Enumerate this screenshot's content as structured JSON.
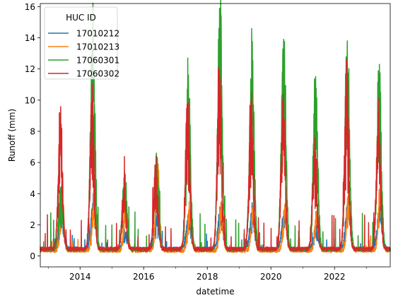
{
  "chart_data": {
    "type": "line",
    "xlabel": "datetime",
    "ylabel": "Runoff (mm)",
    "x_range": [
      "2012-10",
      "2023-10"
    ],
    "ylim": [
      -0.7,
      16.2
    ],
    "x_ticks": [
      {
        "date": "2014-01",
        "label": "2014"
      },
      {
        "date": "2016-01",
        "label": "2016"
      },
      {
        "date": "2018-01",
        "label": "2018"
      },
      {
        "date": "2020-01",
        "label": "2020"
      },
      {
        "date": "2022-01",
        "label": "2022"
      }
    ],
    "y_ticks": [
      {
        "value": 0,
        "label": "0"
      },
      {
        "value": 2,
        "label": "2"
      },
      {
        "value": 4,
        "label": "4"
      },
      {
        "value": 6,
        "label": "6"
      },
      {
        "value": 8,
        "label": "8"
      },
      {
        "value": 10,
        "label": "10"
      },
      {
        "value": 12,
        "label": "12"
      },
      {
        "value": 14,
        "label": "14"
      },
      {
        "value": 16,
        "label": "16"
      }
    ],
    "grid": false,
    "legend": {
      "title": "HUC ID",
      "position": "top-left"
    },
    "series": [
      {
        "name": "17010212",
        "color": "#1f77b4",
        "yearly_peaks": [
          {
            "year": 2013,
            "peak": 2.8
          },
          {
            "year": 2014,
            "peak": 3.6
          },
          {
            "year": 2015,
            "peak": 1.5
          },
          {
            "year": 2016,
            "peak": 2.8
          },
          {
            "year": 2017,
            "peak": 2.7
          },
          {
            "year": 2018,
            "peak": 3.0
          },
          {
            "year": 2019,
            "peak": 3.0
          },
          {
            "year": 2020,
            "peak": 3.0
          },
          {
            "year": 2021,
            "peak": 1.8
          },
          {
            "year": 2022,
            "peak": 3.4
          },
          {
            "year": 2023,
            "peak": 3.2
          }
        ]
      },
      {
        "name": "17010213",
        "color": "#ff7f0e",
        "yearly_peaks": [
          {
            "year": 2013,
            "peak": 3.6
          },
          {
            "year": 2014,
            "peak": 4.0
          },
          {
            "year": 2015,
            "peak": 3.8
          },
          {
            "year": 2016,
            "peak": 5.7
          },
          {
            "year": 2017,
            "peak": 3.0
          },
          {
            "year": 2018,
            "peak": 3.5
          },
          {
            "year": 2019,
            "peak": 3.2
          },
          {
            "year": 2020,
            "peak": 3.3
          },
          {
            "year": 2021,
            "peak": 2.7
          },
          {
            "year": 2022,
            "peak": 3.8
          },
          {
            "year": 2023,
            "peak": 4.7
          }
        ]
      },
      {
        "name": "17060301",
        "color": "#2ca02c",
        "yearly_peaks": [
          {
            "year": 2013,
            "peak": 4.2
          },
          {
            "year": 2014,
            "peak": 14.3
          },
          {
            "year": 2015,
            "peak": 5.4
          },
          {
            "year": 2016,
            "peak": 6.6
          },
          {
            "year": 2017,
            "peak": 11.1
          },
          {
            "year": 2018,
            "peak": 15.5
          },
          {
            "year": 2019,
            "peak": 12.8
          },
          {
            "year": 2020,
            "peak": 13.9
          },
          {
            "year": 2021,
            "peak": 11.3
          },
          {
            "year": 2022,
            "peak": 13.8
          },
          {
            "year": 2023,
            "peak": 11.4
          }
        ]
      },
      {
        "name": "17060302",
        "color": "#d62728",
        "yearly_peaks": [
          {
            "year": 2013,
            "peak": 9.2
          },
          {
            "year": 2014,
            "peak": 9.7
          },
          {
            "year": 2015,
            "peak": 4.2
          },
          {
            "year": 2016,
            "peak": 5.7
          },
          {
            "year": 2017,
            "peak": 9.7
          },
          {
            "year": 2018,
            "peak": 11.9
          },
          {
            "year": 2019,
            "peak": 9.9
          },
          {
            "year": 2020,
            "peak": 9.9
          },
          {
            "year": 2021,
            "peak": 7.6
          },
          {
            "year": 2022,
            "peak": 11.0
          },
          {
            "year": 2023,
            "peak": 8.9
          }
        ]
      }
    ]
  }
}
